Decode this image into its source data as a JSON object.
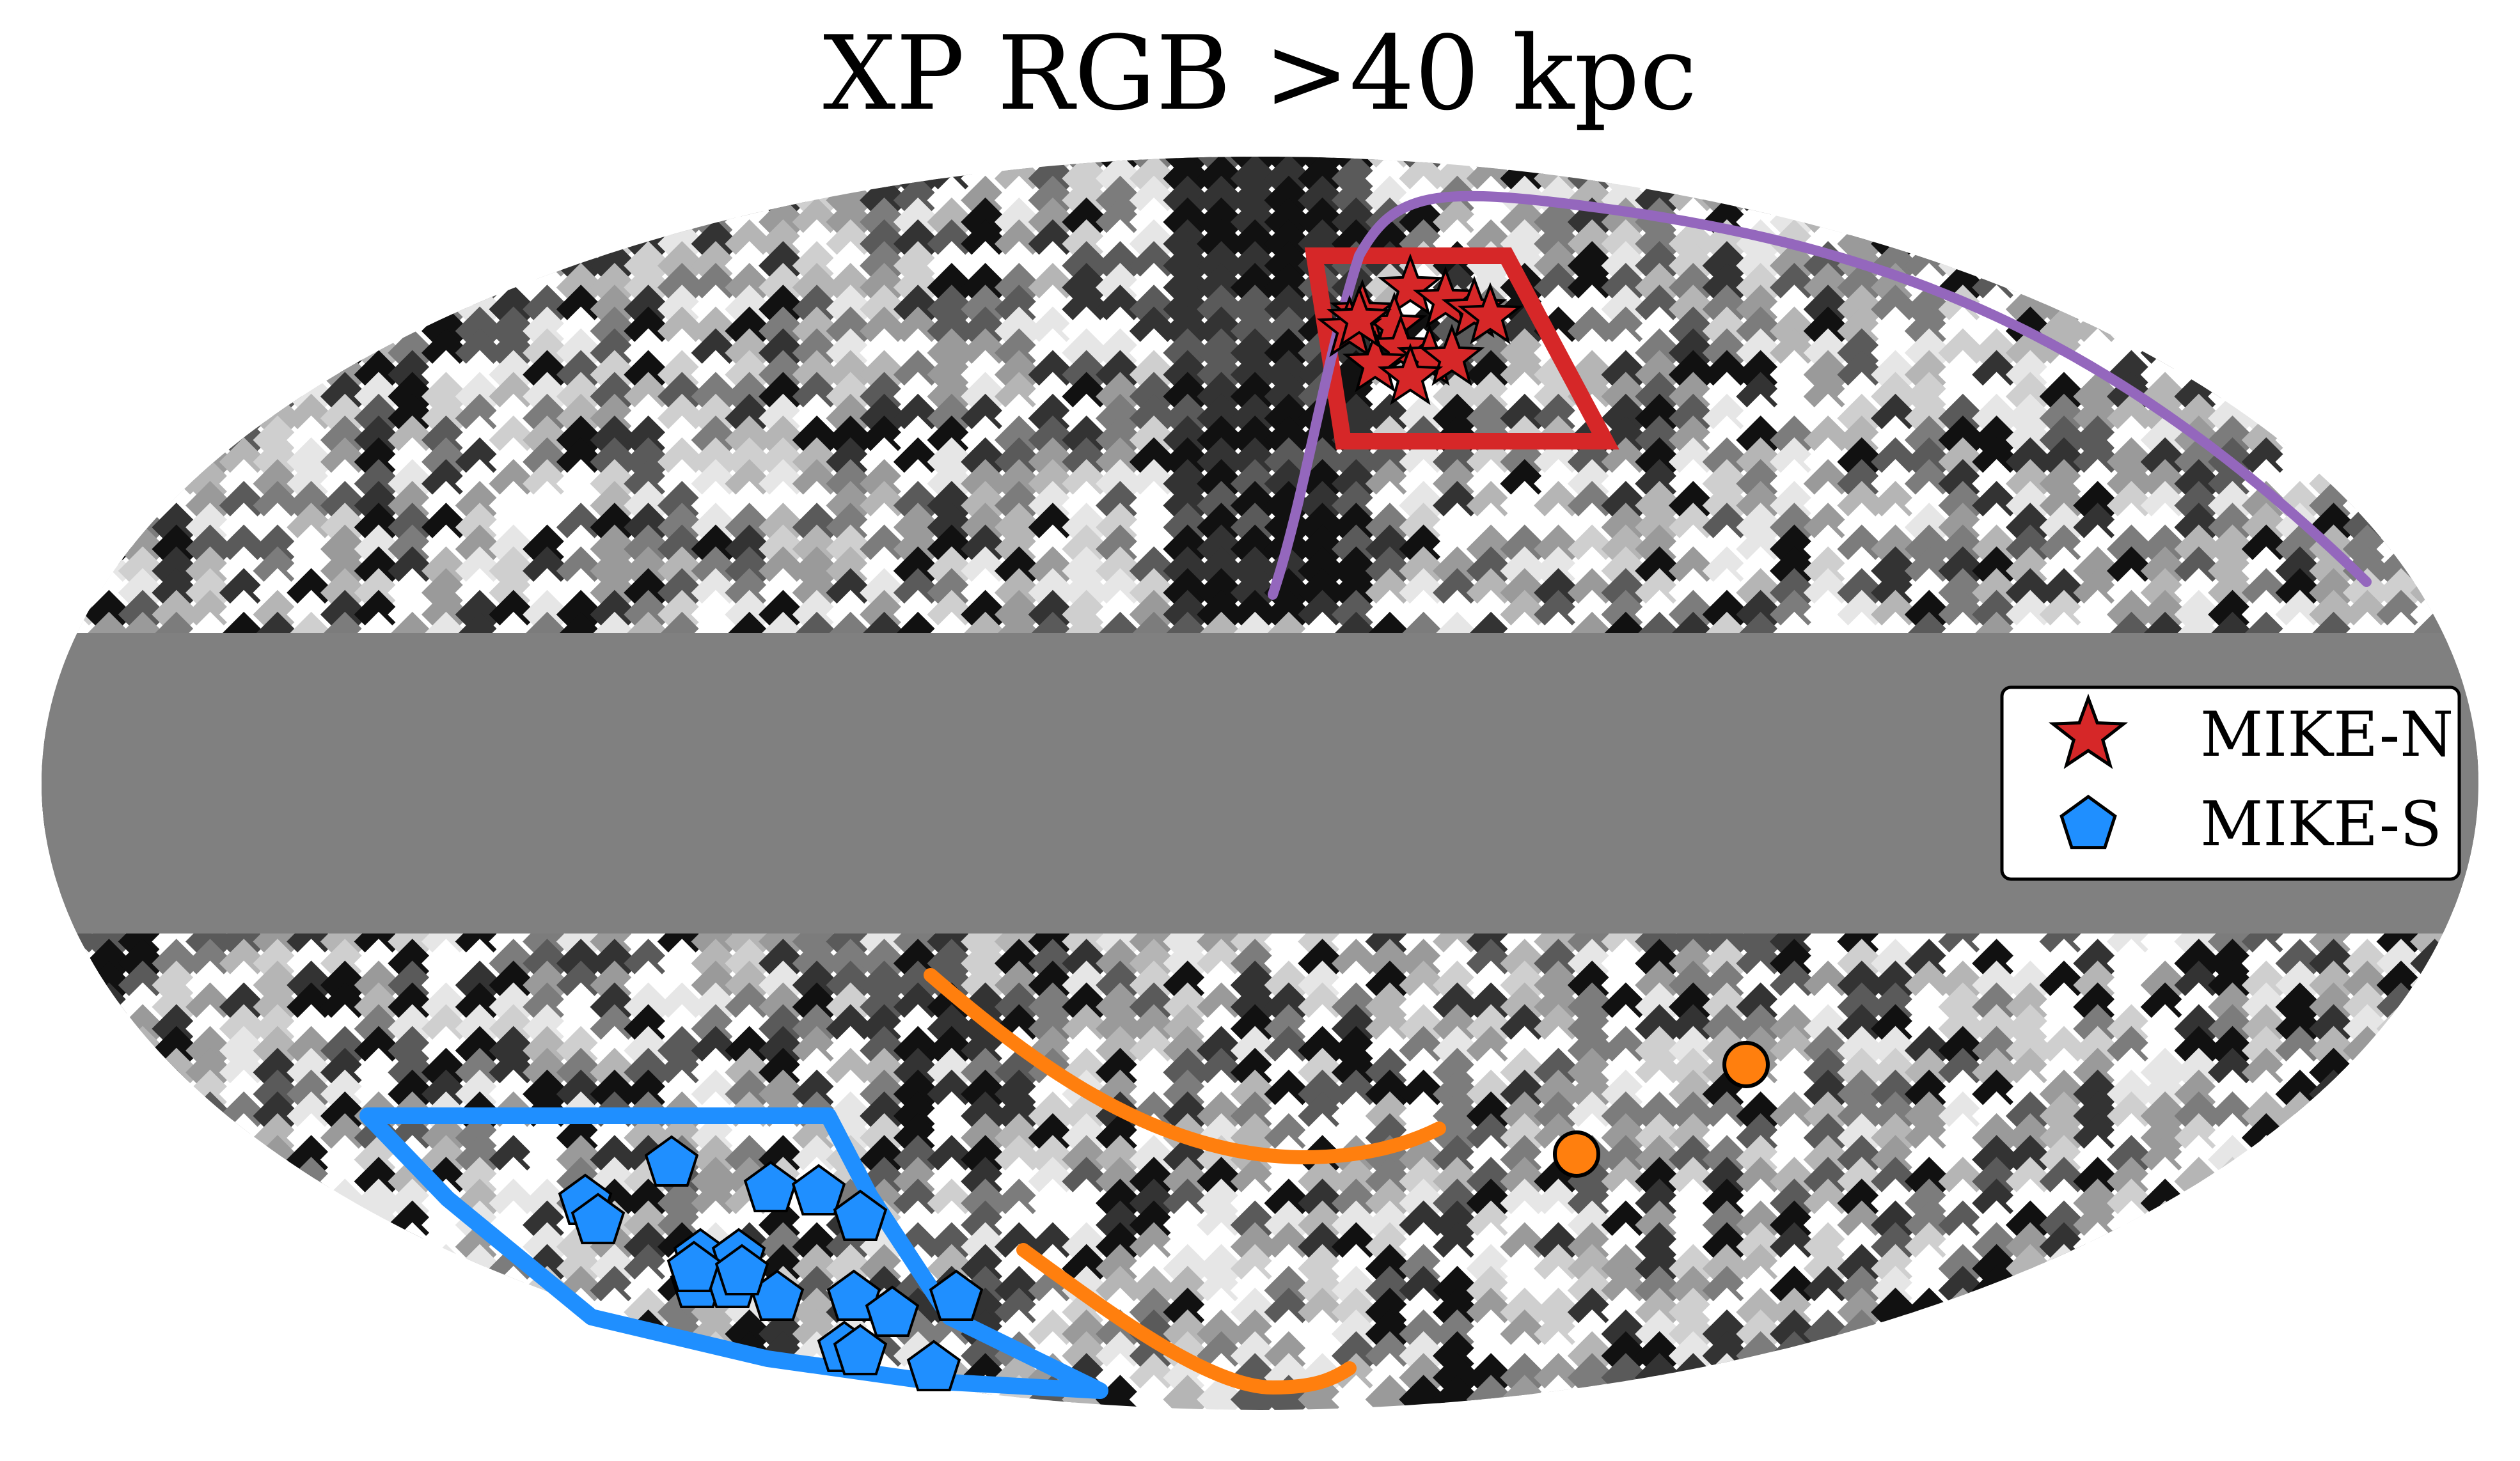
{
  "title": "XP RGB >40 kpc",
  "colors": {
    "galactic_plane_mask": "#808080",
    "mike_n": "#d62728",
    "mike_s": "#1f8fff",
    "stream_purple": "#9467bd",
    "stream_orange": "#ff7f0e",
    "background": "#ffffff"
  },
  "legend": {
    "placement": "right",
    "items": [
      {
        "label": "MIKE-N",
        "marker": "star",
        "color": "#d62728"
      },
      {
        "label": "MIKE-S",
        "marker": "pentagon",
        "color": "#1f8fff"
      }
    ]
  },
  "map": {
    "projection": "Mollweide",
    "map_type": "grayscale healpix density map",
    "mask": "galactic plane band masked in gray"
  },
  "markers": {
    "mike_n_count": 13,
    "mike_s_count": 19,
    "orange_dot_count": 2
  }
}
